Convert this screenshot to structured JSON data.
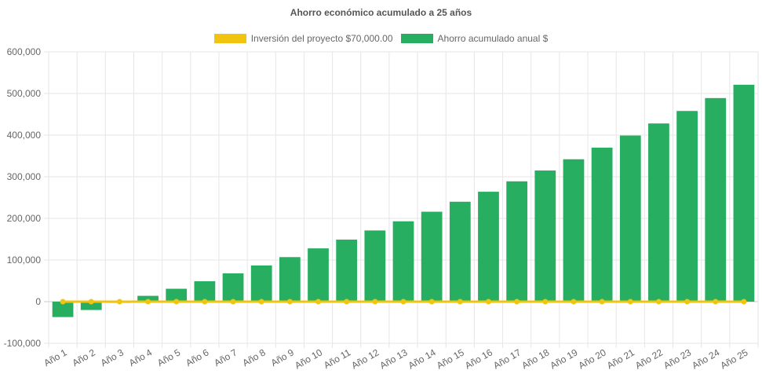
{
  "chart_data": {
    "type": "bar",
    "title": "Ahorro económico acumulado a 25 años",
    "categories": [
      "Año 1",
      "Año 2",
      "Año 3",
      "Año 4",
      "Año 5",
      "Año 6",
      "Año 7",
      "Año 8",
      "Año 9",
      "Año 10",
      "Año 11",
      "Año 12",
      "Año 13",
      "Año 14",
      "Año 15",
      "Año 16",
      "Año 17",
      "Año 18",
      "Año 19",
      "Año 20",
      "Año 21",
      "Año 22",
      "Año 23",
      "Año 24",
      "Año 25"
    ],
    "series": [
      {
        "name": "Inversión del proyecto $70,000.00",
        "type": "line",
        "color": "#f1c40f",
        "values": [
          0,
          0,
          0,
          0,
          0,
          0,
          0,
          0,
          0,
          0,
          0,
          0,
          0,
          0,
          0,
          0,
          0,
          0,
          0,
          0,
          0,
          0,
          0,
          0,
          0
        ]
      },
      {
        "name": "Ahorro acumulado anual $",
        "type": "bar",
        "color": "#27ae60",
        "values": [
          -37000,
          -20000,
          -3000,
          14000,
          31000,
          49000,
          68000,
          87000,
          107000,
          128000,
          149000,
          171000,
          193000,
          216000,
          240000,
          264000,
          289000,
          315000,
          342000,
          370000,
          399000,
          428000,
          458000,
          489000,
          521000
        ]
      }
    ],
    "y_ticks": [
      "600,000",
      "500,000",
      "400,000",
      "300,000",
      "200,000",
      "100,000",
      "0",
      "-100,000"
    ],
    "ylim": [
      -100000,
      600000
    ],
    "grid": true,
    "legend_position": "top"
  }
}
